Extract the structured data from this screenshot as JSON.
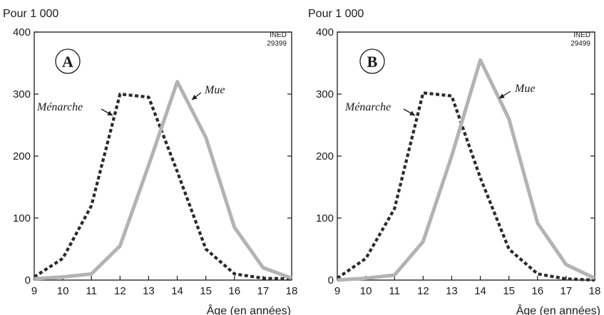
{
  "chart_data": [
    {
      "type": "line",
      "panel_label": "A",
      "unit_label": "Pour 1 000",
      "xlabel": "Âge (en années)",
      "ylabel": "",
      "source_id": [
        "INED",
        "29399"
      ],
      "x": [
        9,
        10,
        11,
        12,
        13,
        14,
        15,
        16,
        17,
        18
      ],
      "xlim": [
        9,
        18
      ],
      "ylim": [
        0,
        400
      ],
      "yticks": [
        0,
        100,
        200,
        300,
        400
      ],
      "grid": false,
      "series": [
        {
          "name": "Ménarche",
          "style": "dotted",
          "color": "#2b2b2b",
          "values": [
            5,
            35,
            120,
            300,
            295,
            175,
            50,
            10,
            3,
            2
          ]
        },
        {
          "name": "Mue",
          "style": "solid",
          "color": "#b3b3b3",
          "values": [
            2,
            5,
            10,
            55,
            185,
            320,
            230,
            85,
            20,
            3
          ]
        }
      ]
    },
    {
      "type": "line",
      "panel_label": "B",
      "unit_label": "Pour 1 000",
      "xlabel": "Âge (en années)",
      "ylabel": "",
      "source_id": [
        "INED",
        "29499"
      ],
      "x": [
        9,
        10,
        11,
        12,
        13,
        14,
        15,
        16,
        17,
        18
      ],
      "xlim": [
        9,
        18
      ],
      "ylim": [
        0,
        400
      ],
      "yticks": [
        0,
        100,
        200,
        300,
        400
      ],
      "grid": false,
      "series": [
        {
          "name": "Ménarche",
          "style": "dotted",
          "color": "#2b2b2b",
          "values": [
            3,
            35,
            115,
            302,
            297,
            165,
            50,
            10,
            2,
            0
          ]
        },
        {
          "name": "Mue",
          "style": "solid",
          "color": "#b3b3b3",
          "values": [
            0,
            3,
            8,
            62,
            200,
            355,
            260,
            92,
            25,
            3
          ]
        }
      ]
    }
  ]
}
